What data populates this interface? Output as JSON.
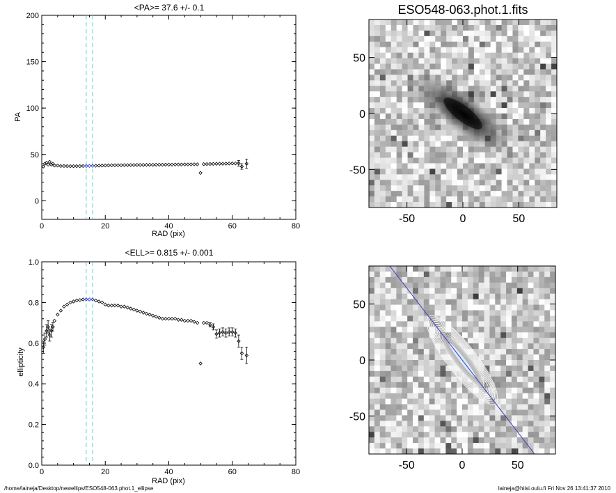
{
  "footer": {
    "left": "/home/laineja/Desktop/newellips/ESO548-063.phot.1_ellipse",
    "right": "laineja@hiisi.oulu.fi  Fri Nov 26 13:41:37 2010"
  },
  "colors": {
    "marker_band": "#5fd3c8",
    "marker_center": "#1a2bd6",
    "major_axis_line": "#3c3cc8",
    "contour": "#ffffff",
    "data": "#000000"
  },
  "chart_data": [
    {
      "type": "scatter",
      "title": "<PA>=  37.6 +/-   0.1",
      "xlabel": "RAD (pix)",
      "ylabel": "PA",
      "xlim": [
        0,
        80
      ],
      "ylim": [
        -20,
        200
      ],
      "xticks": [
        0,
        20,
        40,
        60,
        80
      ],
      "yticks": [
        0,
        50,
        100,
        150,
        200
      ],
      "marker_lines": [
        14,
        16
      ],
      "grid": false,
      "series": [
        {
          "x": [
            0.5,
            1.0,
            1.5,
            2.0,
            2.5,
            3.0,
            3.5,
            4.0,
            5.0,
            6.0,
            7.0,
            8.0,
            9.0,
            10.0,
            11.0,
            12.0,
            13.0,
            14.0,
            15.0,
            16.0,
            17.0,
            18.0,
            19.0,
            20.0,
            21.0,
            22.0,
            23.0,
            24.0,
            25.0,
            26.0,
            27.0,
            28.0,
            29.0,
            30.0,
            31.0,
            32.0,
            33.0,
            34.0,
            35.0,
            36.0,
            37.0,
            38.0,
            39.0,
            40.0,
            41.0,
            42.0,
            43.0,
            44.0,
            45.0,
            46.0,
            47.0,
            48.0,
            49.0,
            50.0,
            51.0,
            52.0,
            53.0,
            54.0,
            55.0,
            56.0,
            57.0,
            58.0,
            59.0,
            60.0,
            61.0,
            62.0,
            63.0,
            64.5
          ],
          "y": [
            37,
            40,
            41,
            39,
            42,
            39,
            40,
            38,
            38,
            37.5,
            37.5,
            37.4,
            37.3,
            37.3,
            37.4,
            37.4,
            37.5,
            37.5,
            37.6,
            37.7,
            37.8,
            37.9,
            38.0,
            38.1,
            38.2,
            38.3,
            38.3,
            38.4,
            38.4,
            38.5,
            38.5,
            38.6,
            38.6,
            38.7,
            38.7,
            38.7,
            38.8,
            38.8,
            38.8,
            38.9,
            38.9,
            38.9,
            39.0,
            39.0,
            39.0,
            39.1,
            39.1,
            39.1,
            39.2,
            39.2,
            39.3,
            39.3,
            39.3,
            30.0,
            39.5,
            39.6,
            39.7,
            39.8,
            39.9,
            40.0,
            40.0,
            40.1,
            40.2,
            40.3,
            40.3,
            40.4,
            37.0,
            40.0
          ],
          "err": [
            0,
            0,
            0,
            0,
            0,
            0,
            0,
            0,
            0,
            0,
            0,
            0,
            0,
            0,
            0,
            0,
            0,
            0,
            0,
            0,
            0,
            0,
            0,
            0,
            0,
            0,
            0,
            0,
            0,
            0,
            0,
            0,
            0,
            0,
            0,
            0,
            0,
            0,
            0,
            0,
            0,
            0,
            0,
            0,
            0,
            0,
            0,
            0,
            0,
            0,
            0,
            0,
            0,
            0,
            0,
            0,
            0,
            0,
            0,
            0,
            0,
            0,
            0,
            0,
            0,
            3,
            3,
            5
          ]
        }
      ]
    },
    {
      "type": "image",
      "title": "ESO548-063.phot.1.fits",
      "xlim": [
        -84,
        84
      ],
      "ylim": [
        -84,
        84
      ],
      "xticks": [
        -50,
        0,
        50
      ],
      "yticks": [
        -50,
        0,
        50
      ]
    },
    {
      "type": "scatter",
      "title": "<ELL>= 0.815 +/-  0.001",
      "xlabel": "RAD (pix)",
      "ylabel": "ellipticity",
      "xlim": [
        0,
        80
      ],
      "ylim": [
        0.0,
        1.0
      ],
      "xticks": [
        0,
        20,
        40,
        60,
        80
      ],
      "yticks": [
        0.0,
        0.2,
        0.4,
        0.6,
        0.8,
        1.0
      ],
      "ytick_labels": [
        "0.0",
        "0.2",
        "0.4",
        "0.6",
        "0.8",
        "1.0"
      ],
      "marker_lines": [
        14,
        16
      ],
      "grid": false,
      "series": [
        {
          "x": [
            0.5,
            1.0,
            1.5,
            2.0,
            2.5,
            3.0,
            3.5,
            4.0,
            5.0,
            6.0,
            7.0,
            8.0,
            9.0,
            10.0,
            11.0,
            12.0,
            13.0,
            14.0,
            15.0,
            16.0,
            17.0,
            18.0,
            19.0,
            20.0,
            21.0,
            22.0,
            23.0,
            24.0,
            25.0,
            26.0,
            27.0,
            28.0,
            29.0,
            30.0,
            31.0,
            32.0,
            33.0,
            34.0,
            35.0,
            36.0,
            37.0,
            38.0,
            39.0,
            40.0,
            41.0,
            42.0,
            43.0,
            44.0,
            45.0,
            46.0,
            47.0,
            48.0,
            49.0,
            50.0,
            51.0,
            52.0,
            53.0,
            54.0,
            55.0,
            56.0,
            57.0,
            58.0,
            59.0,
            60.0,
            61.0,
            62.0,
            63.0,
            64.5
          ],
          "y": [
            0.58,
            0.62,
            0.66,
            0.68,
            0.64,
            0.66,
            0.68,
            0.71,
            0.74,
            0.76,
            0.78,
            0.79,
            0.8,
            0.805,
            0.81,
            0.812,
            0.815,
            0.815,
            0.815,
            0.815,
            0.81,
            0.805,
            0.8,
            0.79,
            0.785,
            0.785,
            0.785,
            0.785,
            0.78,
            0.78,
            0.775,
            0.77,
            0.765,
            0.76,
            0.755,
            0.75,
            0.745,
            0.74,
            0.735,
            0.73,
            0.725,
            0.72,
            0.72,
            0.72,
            0.72,
            0.72,
            0.715,
            0.715,
            0.71,
            0.71,
            0.71,
            0.705,
            0.7,
            0.5,
            0.7,
            0.7,
            0.69,
            0.68,
            0.645,
            0.65,
            0.655,
            0.65,
            0.655,
            0.655,
            0.65,
            0.61,
            0.55,
            0.54
          ],
          "err": [
            0.03,
            0.03,
            0.03,
            0.03,
            0.03,
            0.03,
            0.02,
            0,
            0,
            0,
            0,
            0,
            0,
            0,
            0,
            0,
            0,
            0,
            0,
            0,
            0,
            0,
            0,
            0,
            0,
            0,
            0,
            0,
            0,
            0,
            0,
            0,
            0,
            0,
            0,
            0,
            0,
            0,
            0,
            0,
            0,
            0,
            0,
            0,
            0,
            0,
            0,
            0,
            0,
            0,
            0,
            0,
            0,
            0,
            0,
            0,
            0.01,
            0.015,
            0.02,
            0.02,
            0.02,
            0.02,
            0.02,
            0.02,
            0.02,
            0.03,
            0.03,
            0.04
          ]
        }
      ]
    },
    {
      "type": "image",
      "title": "",
      "xlim": [
        -84,
        84
      ],
      "ylim": [
        -84,
        84
      ],
      "xticks": [
        -50,
        0,
        50
      ],
      "yticks": [
        -50,
        0,
        50
      ],
      "major_axis_pa_deg": 37.6,
      "ellipticity": 0.815
    }
  ]
}
